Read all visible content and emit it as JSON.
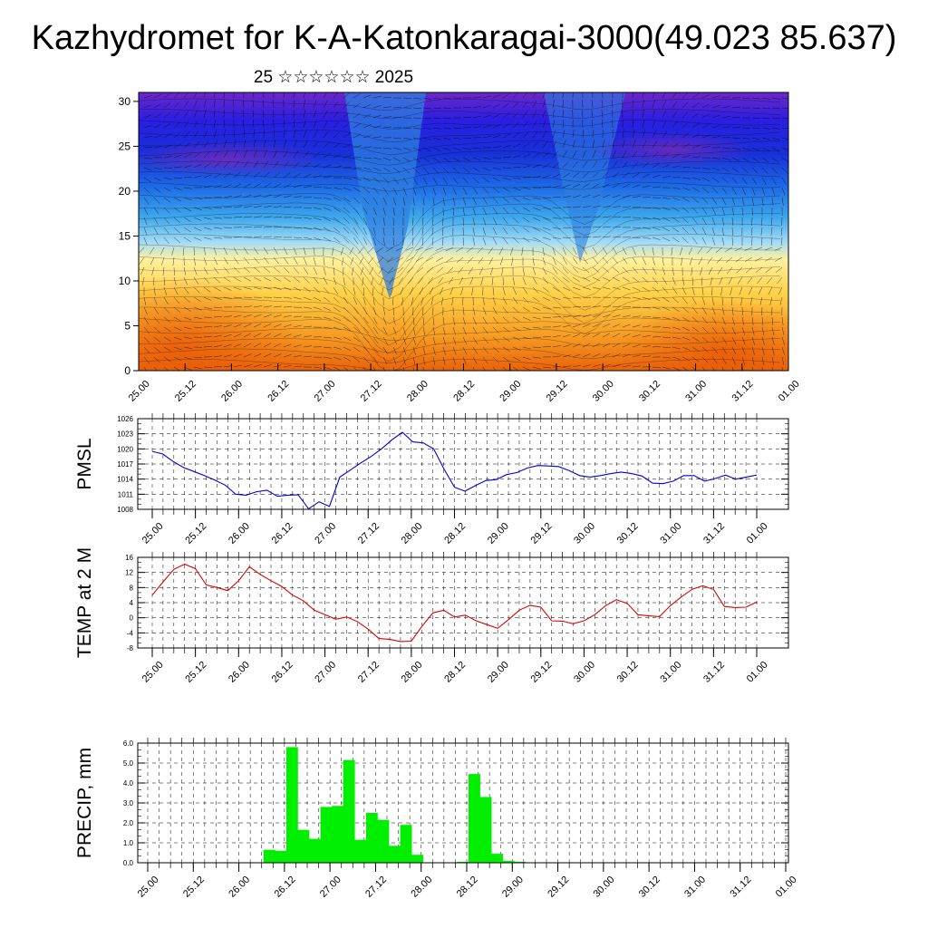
{
  "title": "Kazhydromet for K-A-Katonkaragai-3000(49.023 85.637)",
  "subtitle": "25 ☆☆☆☆☆☆ 2025",
  "chart_data": [
    {
      "id": "cross_section",
      "type": "heatmap",
      "x_ticks": [
        "25.00",
        "25.12",
        "26.00",
        "26.12",
        "27.00",
        "27.12",
        "28.00",
        "28.12",
        "29.00",
        "29.12",
        "30.00",
        "30.12",
        "31.00",
        "31.12",
        "01.00"
      ],
      "y_ticks": [
        0,
        5,
        10,
        15,
        20,
        25,
        30
      ],
      "ylim": [
        0,
        31
      ],
      "colors": {
        "warm": "#e8600a",
        "mid": "#ffe86a",
        "cool": "#3aa0e8",
        "cold": "#2020e0",
        "top": "#6a20c8"
      }
    },
    {
      "id": "pmsl",
      "type": "line",
      "ylabel": "PMSL",
      "color": "#0000dd",
      "ylim": [
        1008,
        1026
      ],
      "y_ticks": [
        1008,
        1011,
        1014,
        1017,
        1020,
        1023,
        1026
      ],
      "x_ticks": [
        "25.00",
        "25.12",
        "26.00",
        "26.12",
        "27.00",
        "27.12",
        "28.00",
        "28.12",
        "29.00",
        "29.12",
        "30.00",
        "30.12",
        "31.00",
        "31.12",
        "01.00"
      ],
      "values": [
        1019.5,
        1019.0,
        1017.5,
        1016.3,
        1015.5,
        1014.7,
        1013.8,
        1012.8,
        1011.0,
        1010.8,
        1011.5,
        1011.8,
        1010.6,
        1010.8,
        1010.9,
        1008.1,
        1009.5,
        1008.6,
        1014.4,
        1015.8,
        1017.2,
        1018.5,
        1020.0,
        1021.8,
        1023.3,
        1021.4,
        1021.2,
        1020.0,
        1016.0,
        1012.4,
        1011.6,
        1012.7,
        1013.7,
        1013.9,
        1014.9,
        1015.3,
        1016.2,
        1016.7,
        1016.6,
        1016.5,
        1015.7,
        1014.7,
        1014.4,
        1014.7,
        1015.1,
        1015.4,
        1015.1,
        1014.6,
        1013.2,
        1013.1,
        1013.6,
        1014.7,
        1014.7,
        1013.6,
        1014.1,
        1014.8,
        1014.0,
        1014.4,
        1014.8
      ]
    },
    {
      "id": "temp2m",
      "type": "line",
      "ylabel": "TEMP at 2 M",
      "color": "#dd0000",
      "ylim": [
        -8,
        16
      ],
      "y_ticks": [
        -8,
        -4,
        0,
        4,
        8,
        12,
        16
      ],
      "x_ticks": [
        "25.00",
        "25.12",
        "26.00",
        "26.12",
        "27.00",
        "27.12",
        "28.00",
        "28.12",
        "29.00",
        "29.12",
        "30.00",
        "30.12",
        "31.00",
        "31.12",
        "01.00"
      ],
      "values": [
        6.0,
        9.5,
        12.8,
        14.2,
        13.0,
        8.7,
        8.0,
        7.2,
        9.8,
        13.5,
        11.5,
        9.8,
        8.3,
        6.0,
        4.5,
        2.0,
        0.8,
        -0.4,
        0.2,
        -1.0,
        -3.0,
        -5.5,
        -5.7,
        -6.3,
        -6.2,
        -2.2,
        1.3,
        2.0,
        0.2,
        0.7,
        -0.8,
        -1.8,
        -2.8,
        -0.5,
        2.0,
        3.3,
        2.8,
        -0.8,
        -0.9,
        -1.6,
        -0.8,
        0.8,
        3.2,
        4.8,
        3.8,
        0.8,
        0.5,
        0.3,
        3.2,
        5.5,
        7.5,
        8.5,
        7.5,
        3.0,
        2.7,
        2.8,
        4.2
      ]
    },
    {
      "id": "precip",
      "type": "bar",
      "ylabel": "PRECIP, mm",
      "color": "#00ee00",
      "ylim": [
        0,
        6
      ],
      "y_ticks": [
        "0.0",
        "1.0",
        "2.0",
        "3.0",
        "4.0",
        "5.0",
        "6.0"
      ],
      "x_ticks": [
        "25.00",
        "25.12",
        "26.00",
        "26.12",
        "27.00",
        "27.12",
        "28.00",
        "28.12",
        "29.00",
        "29.12",
        "30.00",
        "30.12",
        "31.00",
        "31.12",
        "01.00"
      ],
      "values": [
        0,
        0,
        0,
        0,
        0,
        0,
        0,
        0,
        0,
        0,
        0.65,
        0.6,
        5.8,
        1.65,
        1.2,
        2.8,
        2.85,
        5.15,
        1.15,
        2.5,
        2.15,
        0.85,
        1.9,
        0.4,
        0,
        0,
        0,
        0.05,
        4.45,
        3.3,
        0.45,
        0.1,
        0.05,
        0,
        0,
        0,
        0,
        0,
        0,
        0,
        0,
        0,
        0,
        0,
        0,
        0,
        0,
        0,
        0,
        0,
        0,
        0,
        0,
        0,
        0,
        0,
        0
      ]
    }
  ]
}
